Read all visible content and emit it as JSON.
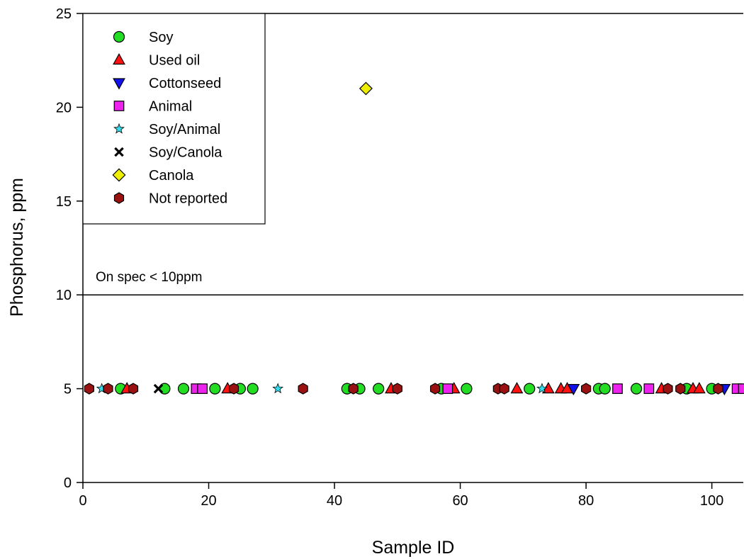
{
  "chart_data": {
    "type": "scatter",
    "xlabel": "Sample ID",
    "ylabel": "Phosphorus, ppm",
    "xlim": [
      0,
      105
    ],
    "ylim": [
      0,
      25
    ],
    "x_ticks": [
      0,
      20,
      40,
      60,
      80,
      100
    ],
    "y_ticks": [
      0,
      5,
      10,
      15,
      20,
      25
    ],
    "grid": false,
    "legend_position": "top-left",
    "reference_lines": [
      {
        "y": 10,
        "label": "On spec < 10ppm"
      }
    ],
    "series": [
      {
        "name": "Soy",
        "marker": "circle",
        "color": "#22dd22",
        "x": [
          6,
          13,
          16,
          21,
          25,
          27,
          42,
          44,
          47,
          57,
          61,
          71,
          82,
          83,
          88,
          96,
          100
        ],
        "y": [
          5,
          5,
          5,
          5,
          5,
          5,
          5,
          5,
          5,
          5,
          5,
          5,
          5,
          5,
          5,
          5,
          5
        ]
      },
      {
        "name": "Used oil",
        "marker": "triangle-up",
        "color": "#ff1111",
        "x": [
          7,
          23,
          49,
          59,
          69,
          74,
          76,
          77,
          92,
          97,
          98
        ],
        "y": [
          5,
          5,
          5,
          5,
          5,
          5,
          5,
          5,
          5,
          5,
          5
        ]
      },
      {
        "name": "Cottonseed",
        "marker": "triangle-down",
        "color": "#1111ee",
        "x": [
          78,
          102
        ],
        "y": [
          5,
          5
        ]
      },
      {
        "name": "Animal",
        "marker": "square",
        "color": "#ee22ee",
        "x": [
          18,
          19,
          58,
          85,
          90,
          104,
          105
        ],
        "y": [
          5,
          5,
          5,
          5,
          5,
          5,
          5
        ]
      },
      {
        "name": "Soy/Animal",
        "marker": "star",
        "color": "#33ddee",
        "x": [
          3,
          31,
          73
        ],
        "y": [
          5,
          5,
          5
        ]
      },
      {
        "name": "Soy/Canola",
        "marker": "x",
        "color": "#000000",
        "x": [
          12
        ],
        "y": [
          5
        ]
      },
      {
        "name": "Canola",
        "marker": "diamond",
        "color": "#eeee00",
        "x": [
          45
        ],
        "y": [
          21
        ]
      },
      {
        "name": "Not reported",
        "marker": "hexagon",
        "color": "#991111",
        "x": [
          1,
          4,
          8,
          24,
          35,
          43,
          50,
          56,
          66,
          67,
          80,
          93,
          95,
          101
        ],
        "y": [
          5,
          5,
          5,
          5,
          5,
          5,
          5,
          5,
          5,
          5,
          5,
          5,
          5,
          5
        ]
      }
    ]
  }
}
